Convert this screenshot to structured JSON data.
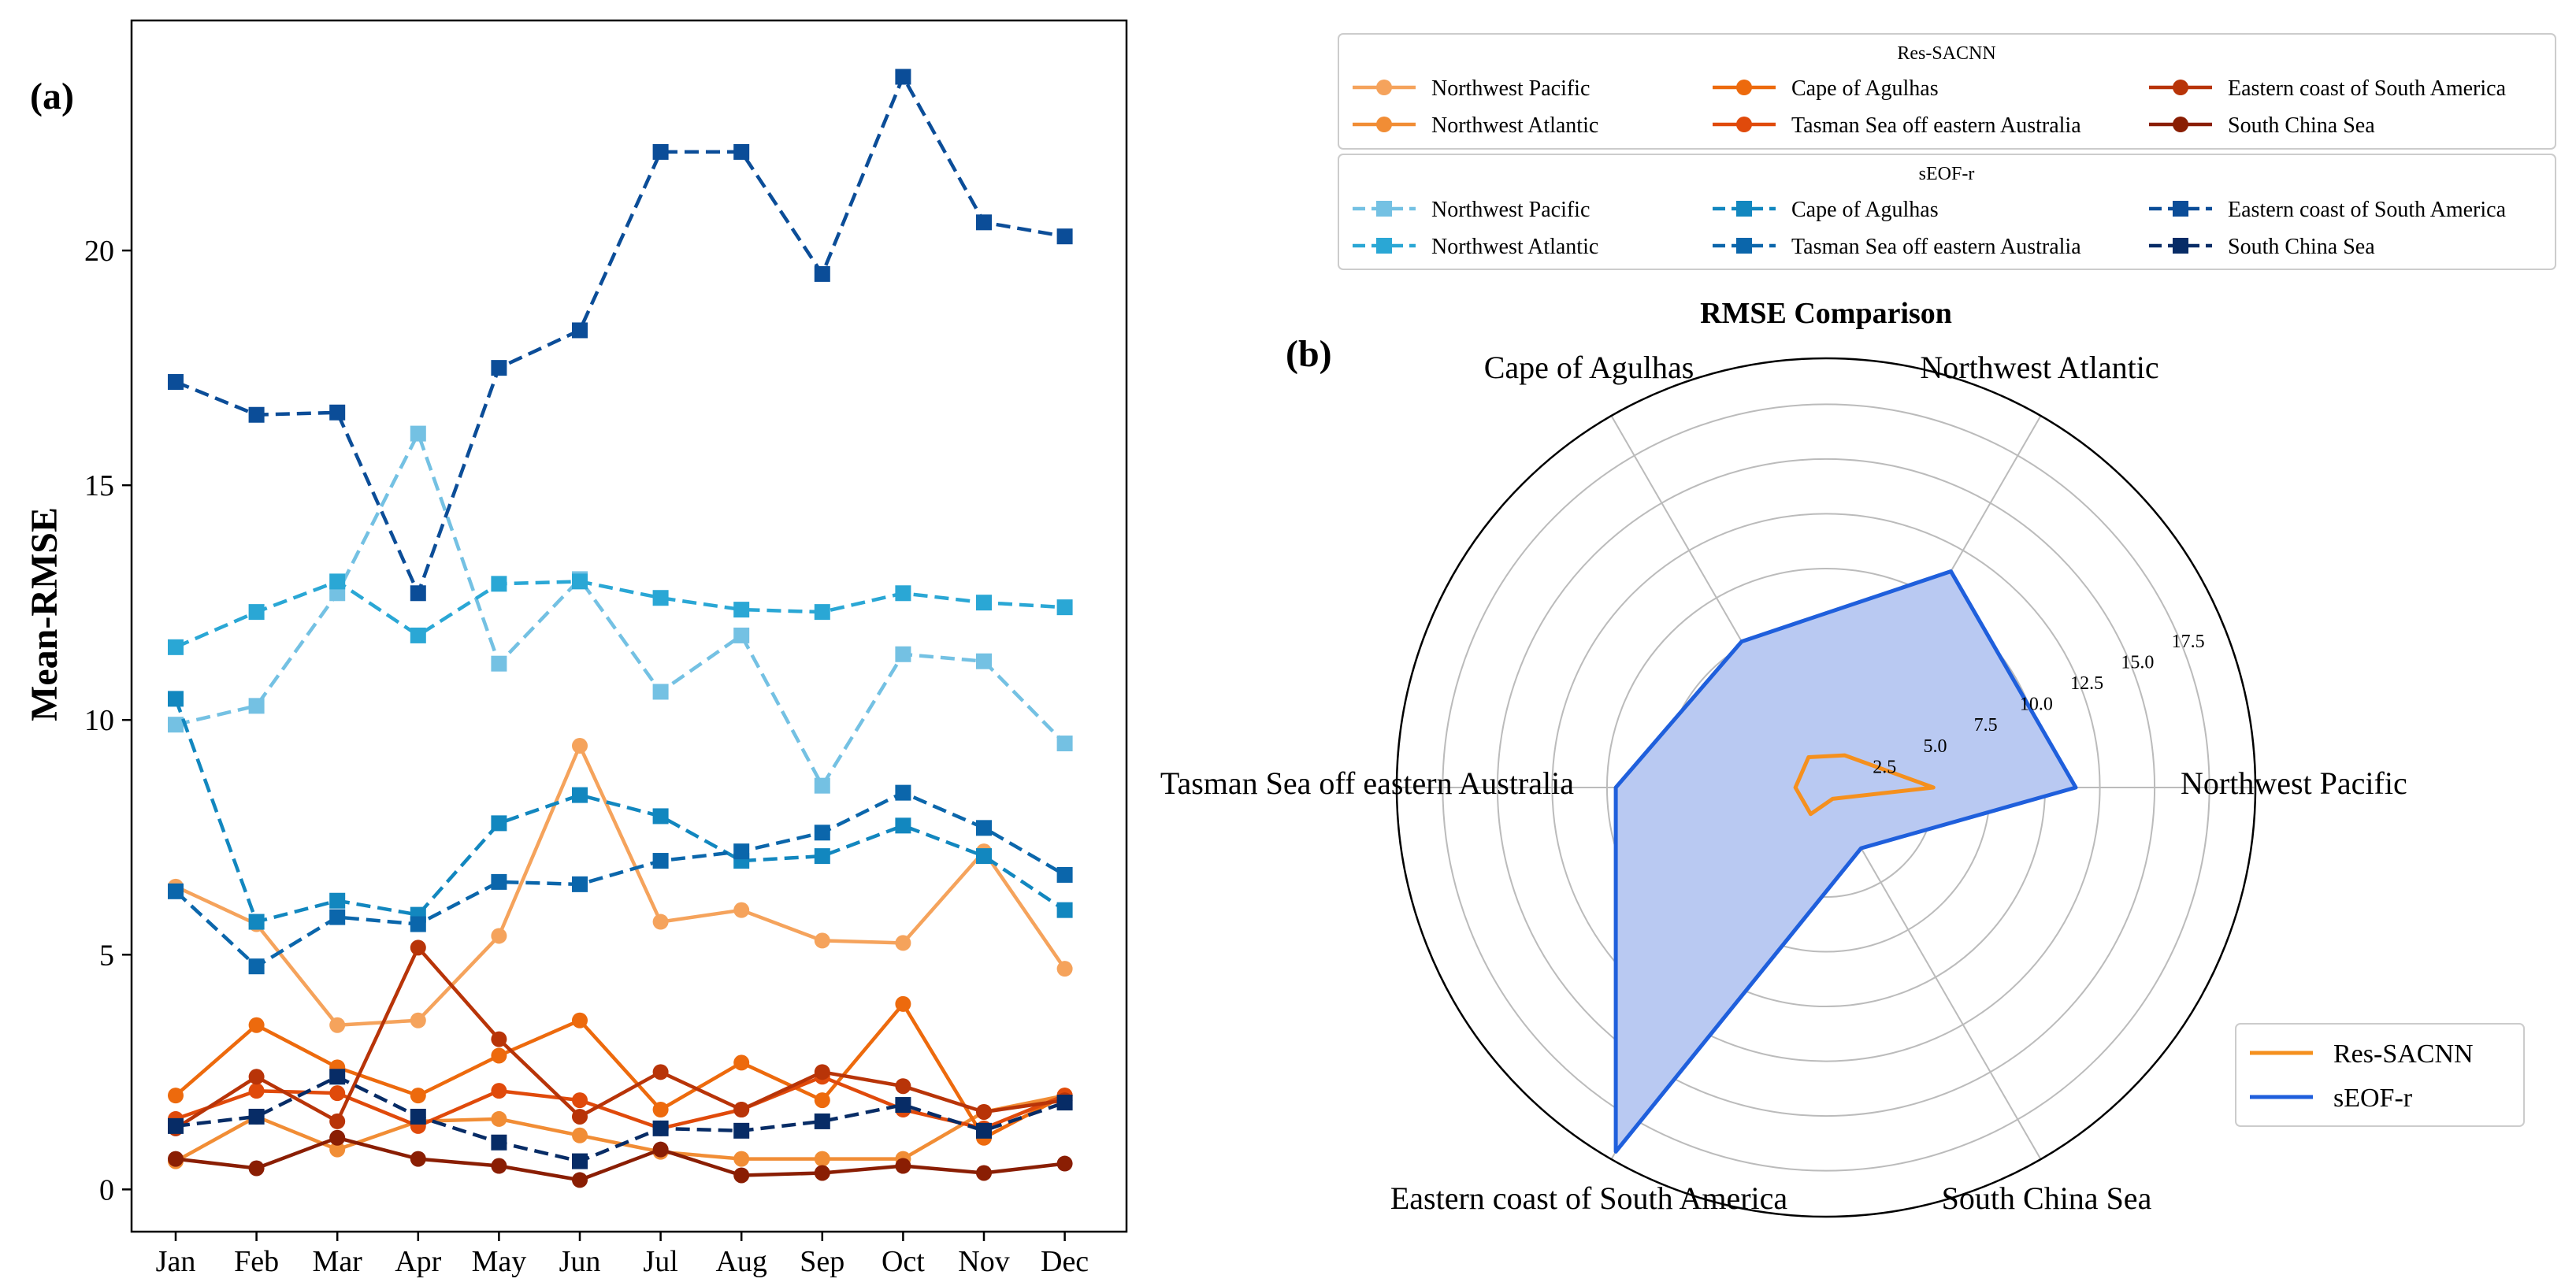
{
  "chart_data": [
    {
      "type": "line",
      "panel_label": "(a)",
      "ylabel": "Mean-RMSE",
      "xlabel": "",
      "categories": [
        "Jan",
        "Feb",
        "Mar",
        "Apr",
        "May",
        "Jun",
        "Jul",
        "Aug",
        "Sep",
        "Oct",
        "Nov",
        "Dec"
      ],
      "yticks": [
        "0",
        "5",
        "10",
        "15",
        "20"
      ],
      "ylim": [
        -0.9,
        24.9
      ],
      "grid": false,
      "series": [
        {
          "name": "Northwest Pacific",
          "group": "Res-SACNN",
          "color": "#f5a35c",
          "style": "solid",
          "marker": "circle",
          "values": [
            6.45,
            5.65,
            3.5,
            3.6,
            5.4,
            9.45,
            5.7,
            5.95,
            5.3,
            5.25,
            7.2,
            4.7
          ]
        },
        {
          "name": "Northwest Atlantic",
          "group": "Res-SACNN",
          "color": "#f18d35",
          "style": "solid",
          "marker": "circle",
          "values": [
            0.6,
            1.55,
            0.85,
            1.45,
            1.5,
            1.15,
            0.8,
            0.65,
            0.65,
            0.65,
            1.65,
            2.0
          ]
        },
        {
          "name": "Cape of Agulhas",
          "group": "Res-SACNN",
          "color": "#ed6a0d",
          "style": "solid",
          "marker": "circle",
          "values": [
            2.0,
            3.5,
            2.6,
            2.0,
            2.85,
            3.6,
            1.7,
            2.7,
            1.9,
            3.95,
            1.1,
            2.0
          ]
        },
        {
          "name": "Tasman Sea off eastern Australia",
          "group": "Res-SACNN",
          "color": "#e04a0b",
          "style": "solid",
          "marker": "circle",
          "values": [
            1.5,
            2.1,
            2.05,
            1.35,
            2.1,
            1.9,
            1.3,
            1.7,
            2.4,
            1.7,
            1.3,
            2.0
          ]
        },
        {
          "name": "Eastern coast of South America",
          "group": "Res-SACNN",
          "color": "#b83408",
          "style": "solid",
          "marker": "circle",
          "values": [
            1.3,
            2.4,
            1.45,
            5.15,
            3.2,
            1.55,
            2.5,
            1.7,
            2.5,
            2.2,
            1.65,
            1.9
          ]
        },
        {
          "name": "South China Sea",
          "group": "Res-SACNN",
          "color": "#8a1e03",
          "style": "solid",
          "marker": "circle",
          "values": [
            0.65,
            0.45,
            1.1,
            0.65,
            0.5,
            0.2,
            0.85,
            0.3,
            0.35,
            0.5,
            0.35,
            0.55
          ]
        },
        {
          "name": "Northwest Pacific",
          "group": "sEOF-r",
          "color": "#74c1e3",
          "style": "dashed",
          "marker": "square",
          "values": [
            9.9,
            10.3,
            12.7,
            16.1,
            11.2,
            13.0,
            10.6,
            11.8,
            8.6,
            11.4,
            11.25,
            9.5
          ]
        },
        {
          "name": "Northwest Atlantic",
          "group": "sEOF-r",
          "color": "#2aa7d5",
          "style": "dashed",
          "marker": "square",
          "values": [
            11.55,
            12.3,
            12.95,
            11.8,
            12.9,
            12.95,
            12.6,
            12.35,
            12.3,
            12.7,
            12.5,
            12.4
          ]
        },
        {
          "name": "Cape of Agulhas",
          "group": "sEOF-r",
          "color": "#1287bf",
          "style": "dashed",
          "marker": "square",
          "values": [
            10.45,
            5.7,
            6.15,
            5.85,
            7.8,
            8.4,
            7.95,
            7.0,
            7.1,
            7.75,
            7.1,
            5.95
          ]
        },
        {
          "name": "Tasman Sea off eastern Australia",
          "group": "sEOF-r",
          "color": "#0b66ab",
          "style": "dashed",
          "marker": "square",
          "values": [
            6.35,
            4.75,
            5.8,
            5.65,
            6.55,
            6.5,
            7.0,
            7.2,
            7.6,
            8.45,
            7.7,
            6.7
          ]
        },
        {
          "name": "Eastern coast of South America",
          "group": "sEOF-r",
          "color": "#0b4d98",
          "style": "dashed",
          "marker": "square",
          "values": [
            17.2,
            16.5,
            16.55,
            12.7,
            17.5,
            18.3,
            22.1,
            22.1,
            19.5,
            23.7,
            20.6,
            20.3
          ]
        },
        {
          "name": "South China Sea",
          "group": "sEOF-r",
          "color": "#072c66",
          "style": "dashed",
          "marker": "square",
          "values": [
            1.35,
            1.55,
            2.4,
            1.55,
            1.0,
            0.6,
            1.3,
            1.25,
            1.45,
            1.8,
            1.25,
            1.85
          ]
        }
      ]
    },
    {
      "type": "radar",
      "panel_label": "(b)",
      "title": "RMSE Comparison",
      "axes": [
        "Northwest Pacific",
        "Northwest Atlantic",
        "Cape of Agulhas",
        "Tasman Sea off eastern Australia",
        "Eastern coast of South America",
        "South China Sea"
      ],
      "rlim": [
        0,
        19.6
      ],
      "rticks": [
        "2.5",
        "5.0",
        "7.5",
        "10.0",
        "12.5",
        "15.0",
        "17.5"
      ],
      "grid": true,
      "legend_position": "lower-right",
      "series": [
        {
          "name": "Res-SACNN",
          "color": "#f5901e",
          "values": [
            4.9,
            1.7,
            1.6,
            1.4,
            1.4,
            0.6
          ]
        },
        {
          "name": "sEOF-r",
          "color": "#1f5fdc",
          "fill": "#b9c9f2",
          "values": [
            11.4,
            11.4,
            7.7,
            9.6,
            19.2,
            3.2
          ]
        }
      ]
    }
  ],
  "legend": {
    "group1_title": "Res-SACNN",
    "group2_title": "sEOF-r"
  }
}
